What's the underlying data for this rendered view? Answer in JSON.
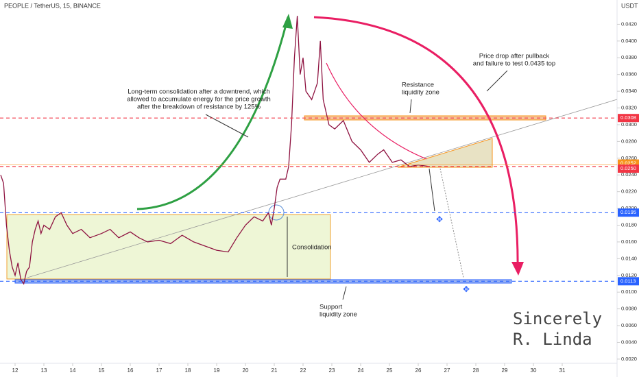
{
  "header": "PEOPLE / TetherUS, 15, BINANCE",
  "unit": "USDT",
  "annotations": {
    "consolidation_note": [
      "Long-term consolidation after a downtrend, which",
      "allowed to accumulate energy for the price growth",
      "after the breakdown of resistance by 125%"
    ],
    "resistance": [
      "Resistance",
      "liquidity zone"
    ],
    "drop": [
      "Price drop after pullback",
      "and failure to test 0.0435 top"
    ],
    "consolidation": "Consolidation",
    "support": [
      "Support",
      "liquidity zone"
    ],
    "signature": [
      "Sincerely",
      "R. Linda"
    ]
  },
  "chart_data": {
    "type": "line",
    "color": "#8e1240",
    "xlim": [
      11.476,
      32.905
    ],
    "ylim": [
      0.0015,
      0.0449
    ],
    "xticks": [
      12,
      13,
      14,
      15,
      16,
      17,
      18,
      19,
      20,
      21,
      22,
      23,
      24,
      25,
      26,
      27,
      28,
      29,
      30,
      31
    ],
    "yticks": [
      {
        "value": 0.002,
        "label": "0.0020"
      },
      {
        "value": 0.004,
        "label": "0.0040"
      },
      {
        "value": 0.006,
        "label": "0.0060"
      },
      {
        "value": 0.008,
        "label": "0.0080"
      },
      {
        "value": 0.01,
        "label": "0.0100"
      },
      {
        "value": 0.012,
        "label": "0.0120"
      },
      {
        "value": 0.014,
        "label": "0.0140"
      },
      {
        "value": 0.016,
        "label": "0.0160"
      },
      {
        "value": 0.018,
        "label": "0.0180"
      },
      {
        "value": 0.02,
        "label": "0.0200"
      },
      {
        "value": 0.022,
        "label": "0.0220"
      },
      {
        "value": 0.024,
        "label": "0.0240"
      },
      {
        "value": 0.026,
        "label": "0.0260"
      },
      {
        "value": 0.028,
        "label": "0.0280"
      },
      {
        "value": 0.03,
        "label": "0.0300"
      },
      {
        "value": 0.032,
        "label": "0.0320"
      },
      {
        "value": 0.034,
        "label": "0.0340"
      },
      {
        "value": 0.036,
        "label": "0.0360"
      },
      {
        "value": 0.038,
        "label": "0.0380"
      },
      {
        "value": 0.04,
        "label": "0.0400"
      },
      {
        "value": 0.042,
        "label": "0.0420"
      }
    ],
    "x": [
      11.5,
      11.6,
      11.7,
      11.8,
      11.9,
      12.0,
      12.1,
      12.2,
      12.3,
      12.4,
      12.5,
      12.6,
      12.7,
      12.8,
      12.9,
      13.0,
      13.2,
      13.4,
      13.6,
      13.8,
      14.0,
      14.3,
      14.6,
      15.0,
      15.3,
      15.6,
      16.0,
      16.3,
      16.6,
      17.0,
      17.4,
      17.8,
      18.2,
      18.6,
      19.0,
      19.4,
      19.7,
      20.0,
      20.3,
      20.6,
      20.8,
      20.9,
      21.0,
      21.1,
      21.2,
      21.4,
      21.5,
      21.6,
      21.7,
      21.8,
      21.9,
      22.0,
      22.1,
      22.3,
      22.5,
      22.6,
      22.7,
      22.9,
      23.1,
      23.4,
      23.7,
      24.0,
      24.3,
      24.6,
      24.8,
      25.1,
      25.4,
      25.7,
      26.0,
      26.4
    ],
    "values": [
      0.024,
      0.023,
      0.018,
      0.015,
      0.013,
      0.012,
      0.0135,
      0.0115,
      0.011,
      0.0125,
      0.013,
      0.016,
      0.0175,
      0.0185,
      0.017,
      0.018,
      0.0175,
      0.019,
      0.0195,
      0.018,
      0.017,
      0.0175,
      0.0165,
      0.017,
      0.0175,
      0.0165,
      0.0172,
      0.0165,
      0.016,
      0.0162,
      0.0158,
      0.0168,
      0.016,
      0.0155,
      0.015,
      0.0148,
      0.0165,
      0.018,
      0.019,
      0.0185,
      0.0195,
      0.018,
      0.02,
      0.0225,
      0.0235,
      0.0235,
      0.025,
      0.03,
      0.038,
      0.043,
      0.036,
      0.038,
      0.034,
      0.033,
      0.035,
      0.04,
      0.033,
      0.03,
      0.0295,
      0.0305,
      0.028,
      0.027,
      0.0255,
      0.0265,
      0.027,
      0.0255,
      0.0258,
      0.025,
      0.0252,
      0.025
    ],
    "levels": [
      {
        "value": 0.0308,
        "label": "0.0308",
        "color": "#f23645"
      },
      {
        "value": 0.0252,
        "label": "0.0252",
        "color": "#f7931a"
      },
      {
        "value": 0.025,
        "label": "0.0250",
        "color": "#f23645"
      },
      {
        "value": 0.0195,
        "label": "0.0195",
        "color": "#2962ff"
      },
      {
        "value": 0.0113,
        "label": "0.0113",
        "color": "#2962ff"
      }
    ]
  }
}
